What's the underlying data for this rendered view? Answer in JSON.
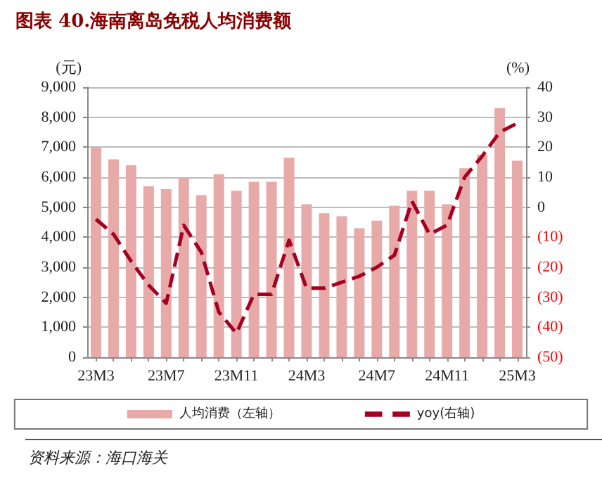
{
  "chart_data": {
    "type": "bar",
    "title": "图表 40.海南离岛免税人均消费额",
    "ylabel": "(元)",
    "y2label": "(%)",
    "annotations": [
      "资料来源：海口海关"
    ],
    "categories": [
      "23M3",
      null,
      null,
      null,
      "23M7",
      null,
      null,
      null,
      "23M11",
      null,
      null,
      null,
      "24M3",
      null,
      null,
      null,
      "24M7",
      null,
      null,
      null,
      "24M11",
      null,
      null,
      null,
      "25M3"
    ],
    "series": [
      {
        "name": "人均消费（左轴）",
        "color": "#e8a9a9",
        "values": [
          7000,
          6600,
          6400,
          5700,
          5600,
          6000,
          5400,
          6100,
          5550,
          5850,
          5850,
          6650,
          5100,
          4800,
          4700,
          4300,
          4550,
          5050,
          5550,
          5550,
          5100,
          6300,
          6750,
          8300,
          6550
        ]
      },
      {
        "name": "yoy(右轴)",
        "type": "line",
        "axis": "y2",
        "color": "#a50021",
        "line_style": "dashed",
        "values": [
          -4,
          -9,
          -18,
          -26,
          -32,
          -6,
          -15,
          -35,
          -42,
          -29,
          -29,
          -11,
          -27,
          -27,
          -25,
          -23,
          -20,
          -16,
          2,
          -9,
          -6,
          10,
          17,
          25,
          28
        ]
      }
    ],
    "ylim": [
      0,
      9000
    ],
    "yticks": [
      {
        "value": 0,
        "label": "0"
      },
      {
        "value": 1000,
        "label": "1,000"
      },
      {
        "value": 2000,
        "label": "2,000"
      },
      {
        "value": 3000,
        "label": "3,000"
      },
      {
        "value": 4000,
        "label": "4,000"
      },
      {
        "value": 5000,
        "label": "5,000"
      },
      {
        "value": 6000,
        "label": "6,000"
      },
      {
        "value": 7000,
        "label": "7,000"
      },
      {
        "value": 8000,
        "label": "8,000"
      },
      {
        "value": 9000,
        "label": "9,000"
      }
    ],
    "y2lim": [
      -50,
      40
    ],
    "y2ticks": [
      {
        "value": -50,
        "label": "(50)"
      },
      {
        "value": -40,
        "label": "(40)"
      },
      {
        "value": -30,
        "label": "(30)"
      },
      {
        "value": -20,
        "label": "(20)"
      },
      {
        "value": -10,
        "label": "(10)"
      },
      0,
      10,
      20,
      30,
      40
    ],
    "grid": "y",
    "legend": "bottom",
    "marker": "none"
  }
}
